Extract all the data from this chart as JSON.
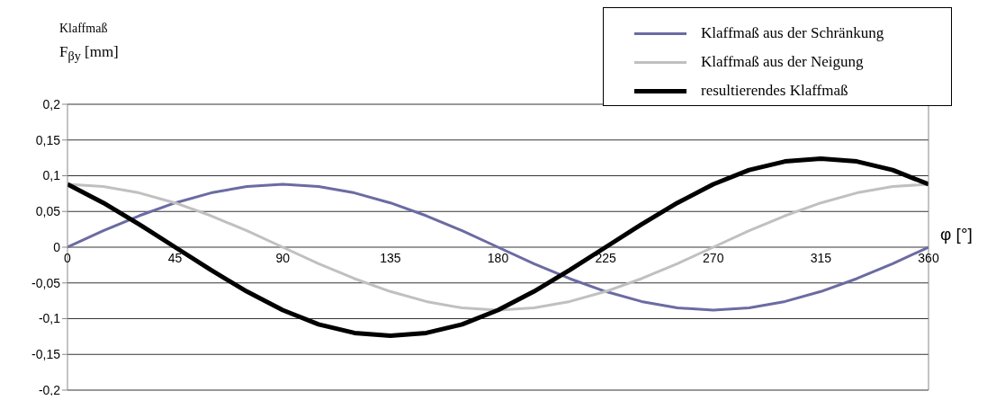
{
  "chart_data": {
    "type": "line",
    "ylabel": "Klaffmaß\nF$_{βy}$ [mm]",
    "xlabel": "φ [°]",
    "x": [
      0,
      15,
      30,
      45,
      60,
      75,
      90,
      105,
      120,
      135,
      150,
      165,
      180,
      195,
      210,
      225,
      240,
      255,
      270,
      285,
      300,
      315,
      330,
      345,
      360
    ],
    "series": [
      {
        "name": "Klaffmaß aus der Schränkung",
        "color": "#6b6ba3",
        "values": [
          0,
          0.023,
          0.044,
          0.062,
          0.076,
          0.085,
          0.088,
          0.085,
          0.076,
          0.062,
          0.044,
          0.023,
          0,
          -0.023,
          -0.044,
          -0.062,
          -0.076,
          -0.085,
          -0.088,
          -0.085,
          -0.076,
          -0.062,
          -0.044,
          -0.023,
          0
        ]
      },
      {
        "name": "Klaffmaß aus der Neigung",
        "color": "#c0c0c0",
        "values": [
          0.088,
          0.085,
          0.076,
          0.062,
          0.044,
          0.023,
          0,
          -0.023,
          -0.044,
          -0.062,
          -0.076,
          -0.085,
          -0.088,
          -0.085,
          -0.076,
          -0.062,
          -0.044,
          -0.023,
          0,
          0.023,
          0.044,
          0.062,
          0.076,
          0.085,
          0.088
        ]
      },
      {
        "name": "resultierendes Klaffmaß",
        "color": "#000000",
        "values": [
          0.088,
          0.062,
          0.032,
          0,
          -0.032,
          -0.062,
          -0.088,
          -0.108,
          -0.12,
          -0.124,
          -0.12,
          -0.108,
          -0.088,
          -0.062,
          -0.032,
          0,
          0.032,
          0.062,
          0.088,
          0.108,
          0.12,
          0.124,
          0.12,
          0.108,
          0.088
        ]
      }
    ],
    "xlim": [
      0,
      360
    ],
    "xticks": [
      0,
      45,
      90,
      135,
      180,
      225,
      270,
      315,
      360
    ],
    "ylim": [
      -0.2,
      0.2
    ],
    "yticks": [
      {
        "value": -0.2,
        "label": "-0,2"
      },
      {
        "value": -0.15,
        "label": "-0,15"
      },
      {
        "value": -0.1,
        "label": "-0,1"
      },
      {
        "value": -0.05,
        "label": "-0,05"
      },
      0,
      {
        "value": 0.05,
        "label": "0,05"
      },
      {
        "value": 0.1,
        "label": "0,1"
      },
      {
        "value": 0.15,
        "label": "0,15"
      },
      {
        "value": 0.2,
        "label": "0,2"
      }
    ],
    "grid": "y",
    "legend": "top right",
    "marker": "none",
    "line_style": "solid"
  }
}
